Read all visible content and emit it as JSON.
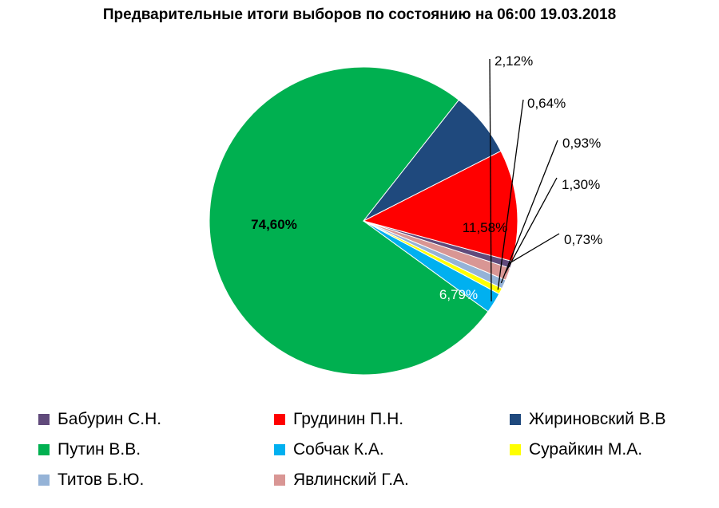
{
  "chart_data": {
    "type": "pie",
    "title": "Предварительные итоги выборов по состоянию на 06:00 19.03.2018",
    "slices": [
      {
        "name": "Путин В.В.",
        "value": 74.6,
        "label": "74,60%",
        "color": "#00B050"
      },
      {
        "name": "Собчак К.А.",
        "value": 2.12,
        "label": "2,12%",
        "color": "#00B0F0"
      },
      {
        "name": "Сурайкин М.А.",
        "value": 0.64,
        "label": "0,64%",
        "color": "#FFFF00"
      },
      {
        "name": "Титов Б.Ю.",
        "value": 0.93,
        "label": "0,93%",
        "color": "#95B3D7"
      },
      {
        "name": "Явлинский Г.А.",
        "value": 1.3,
        "label": "1,30%",
        "color": "#D99694"
      },
      {
        "name": "Бабурин С.Н.",
        "value": 0.73,
        "label": "0,73%",
        "color": "#604A7B"
      },
      {
        "name": "Грудинин П.Н.",
        "value": 11.58,
        "label": "11,58%",
        "color": "#FF0000"
      },
      {
        "name": "Жириновский В.В",
        "value": 6.79,
        "label": "6,79%",
        "color": "#1F497D"
      }
    ],
    "legend_order": [
      "Бабурин С.Н.",
      "Грудинин П.Н.",
      "Жириновский В.В",
      "Путин В.В.",
      "Собчак К.А.",
      "Сурайкин М.А.",
      "Титов Б.Ю.",
      "Явлинский Г.А."
    ],
    "legend_position": "bottom"
  }
}
